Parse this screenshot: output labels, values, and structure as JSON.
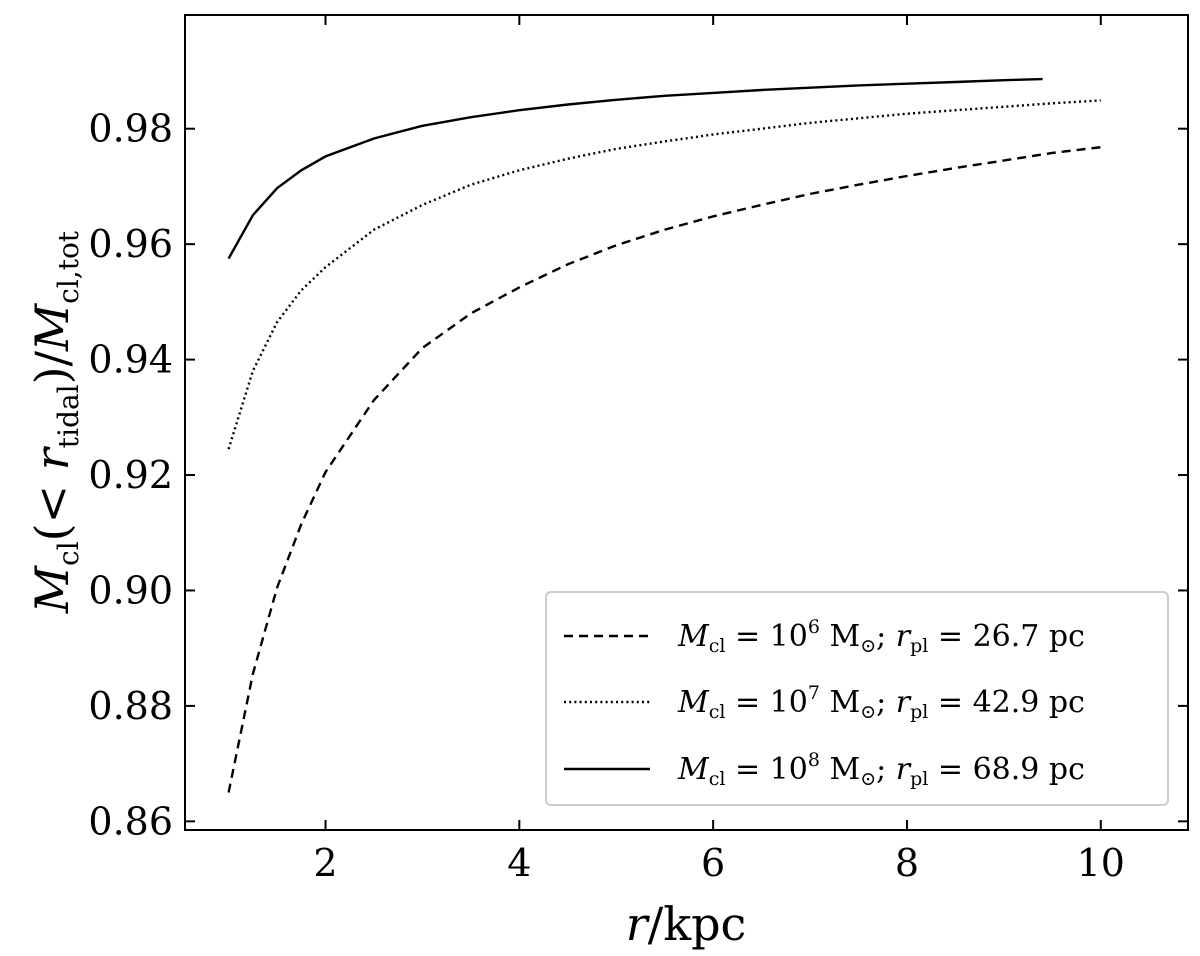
{
  "chart_data": {
    "type": "line",
    "xlabel": {
      "main": "r",
      "rest": "/kpc"
    },
    "ylabel": {
      "m1": "M",
      "sub1": "cl",
      "mid1": "(< ",
      "r": "r",
      "sub2": "tidal",
      "mid2": ")/",
      "m2": "M",
      "sub3": "cl,tot"
    },
    "xlim": [
      0.55,
      10.9
    ],
    "ylim": [
      0.8585,
      0.9997
    ],
    "xticks": [
      2,
      4,
      6,
      8,
      10
    ],
    "xtick_labels": [
      "2",
      "4",
      "6",
      "8",
      "10"
    ],
    "yticks": [
      0.86,
      0.88,
      0.9,
      0.92,
      0.94,
      0.96,
      0.98
    ],
    "ytick_labels": [
      "0.86",
      "0.88",
      "0.90",
      "0.92",
      "0.94",
      "0.96",
      "0.98"
    ],
    "grid": false,
    "legend_position": "bottom-right",
    "series": [
      {
        "style": "dashed",
        "legend": {
          "m": "M",
          "msub": "cl",
          "eq1": " = 10",
          "exp": "6",
          "unit": " M",
          "sun": "⊙",
          "sep": "; ",
          "r": "r",
          "rsub": "pl",
          "eq2": " = 26.7 pc"
        },
        "x": [
          1.0,
          1.25,
          1.5,
          1.75,
          2.0,
          2.5,
          3.0,
          3.5,
          4.0,
          4.5,
          5.0,
          5.5,
          6.0,
          6.5,
          7.0,
          7.5,
          8.0,
          8.5,
          9.0,
          9.5,
          10.0
        ],
        "y": [
          0.865,
          0.8855,
          0.9005,
          0.9115,
          0.9205,
          0.933,
          0.942,
          0.948,
          0.9525,
          0.9565,
          0.9598,
          0.9625,
          0.9648,
          0.9668,
          0.9687,
          0.9703,
          0.9718,
          0.9732,
          0.9745,
          0.9758,
          0.9768
        ]
      },
      {
        "style": "dotted",
        "legend": {
          "m": "M",
          "msub": "cl",
          "eq1": " = 10",
          "exp": "7",
          "unit": " M",
          "sun": "⊙",
          "sep": "; ",
          "r": "r",
          "rsub": "pl",
          "eq2": " = 42.9 pc"
        },
        "x": [
          1.0,
          1.25,
          1.5,
          1.75,
          2.0,
          2.5,
          3.0,
          3.5,
          4.0,
          4.5,
          5.0,
          5.5,
          6.0,
          6.5,
          7.0,
          7.5,
          8.0,
          8.5,
          9.0,
          9.5,
          10.0
        ],
        "y": [
          0.9245,
          0.938,
          0.9465,
          0.952,
          0.956,
          0.9625,
          0.9668,
          0.9703,
          0.9728,
          0.9748,
          0.9765,
          0.9778,
          0.979,
          0.98,
          0.981,
          0.9818,
          0.9826,
          0.9832,
          0.9838,
          0.9844,
          0.9849
        ]
      },
      {
        "style": "solid",
        "legend": {
          "m": "M",
          "msub": "cl",
          "eq1": " = 10",
          "exp": "8",
          "unit": " M",
          "sun": "⊙",
          "sep": "; ",
          "r": "r",
          "rsub": "pl",
          "eq2": " = 68.9 pc"
        },
        "x": [
          1.0,
          1.25,
          1.5,
          1.75,
          2.0,
          2.5,
          3.0,
          3.5,
          4.0,
          4.5,
          5.0,
          5.5,
          6.0,
          6.5,
          7.0,
          7.5,
          8.0,
          8.5,
          9.0,
          9.4
        ],
        "y": [
          0.9575,
          0.965,
          0.9697,
          0.9728,
          0.9752,
          0.9783,
          0.9805,
          0.982,
          0.9832,
          0.9842,
          0.985,
          0.9857,
          0.9862,
          0.9867,
          0.9871,
          0.9875,
          0.9878,
          0.9881,
          0.9884,
          0.9886
        ]
      }
    ]
  }
}
